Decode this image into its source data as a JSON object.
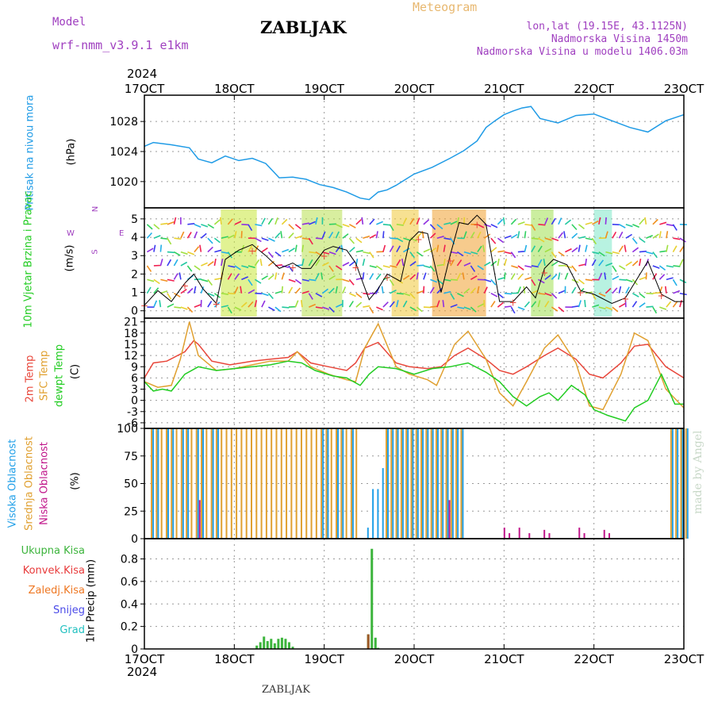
{
  "header": {
    "model_label": "Model",
    "model_name": "wrf-nmm_v3.9.1 e1km",
    "title": "ZABLJAK",
    "product": "Meteogram",
    "coords": "lon,lat (19.15E, 43.1125N)",
    "altitude": "Nadmorska Visina 1450m",
    "model_altitude": "Nadmorska Visina u modelu 1406.03m",
    "year": "2024",
    "footer_station": "ZABLJAK",
    "watermark": "made by Angel"
  },
  "colors": {
    "pressure": "#1f9be6",
    "temp2m": "#e8463a",
    "sfc_temp": "#e0a030",
    "dewpt": "#22cc22",
    "high_cloud": "#22a0e8",
    "mid_cloud": "#e0a030",
    "low_cloud": "#c0168a",
    "total_precip": "#3cb43c",
    "convective": "#e83a3a",
    "frozen": "#ee7722",
    "snow": "#4a4ae8",
    "hail": "#22c0c0",
    "model_label": "#a040c0"
  },
  "x_axis": {
    "ticks": [
      "17OCT",
      "18OCT",
      "19OCT",
      "20OCT",
      "21OCT",
      "22OCT",
      "23OCT"
    ]
  },
  "chart_data": [
    {
      "type": "line",
      "name": "pressure",
      "ylabel_title": "Pritisak na nivou mora",
      "ylabel_unit": "(hPa)",
      "ylim": [
        1016.5,
        1031.5
      ],
      "yticks": [
        1020,
        1024,
        1028
      ],
      "grid": true,
      "x": [
        0,
        0.1,
        0.3,
        0.5,
        0.6,
        0.75,
        0.9,
        1.05,
        1.2,
        1.35,
        1.5,
        1.65,
        1.8,
        1.95,
        2.1,
        2.25,
        2.4,
        2.5,
        2.6,
        2.7,
        2.8,
        3.0,
        3.2,
        3.4,
        3.55,
        3.7,
        3.8,
        3.9,
        4.0,
        4.1,
        4.2,
        4.3,
        4.4,
        4.6,
        4.8,
        5.0,
        5.2,
        5.4,
        5.6,
        5.8,
        6.0
      ],
      "values": [
        1024.7,
        1025.2,
        1024.9,
        1024.5,
        1023.0,
        1022.5,
        1023.4,
        1022.8,
        1023.1,
        1022.4,
        1020.5,
        1020.6,
        1020.3,
        1019.6,
        1019.2,
        1018.6,
        1017.8,
        1017.6,
        1018.6,
        1018.9,
        1019.5,
        1021.0,
        1021.9,
        1023.1,
        1024.1,
        1025.4,
        1027.2,
        1028.1,
        1028.9,
        1029.4,
        1029.8,
        1030.0,
        1028.4,
        1027.8,
        1028.8,
        1029.0,
        1028.1,
        1027.2,
        1026.6,
        1028.1,
        1028.9
      ]
    },
    {
      "type": "line",
      "name": "wind",
      "ylabel_title": "10m Vjetar Brzina i Pravac",
      "ylabel_unit": "(m/s)",
      "compass": [
        "N",
        "S",
        "W",
        "E"
      ],
      "ylim": [
        -0.4,
        5.6
      ],
      "yticks": [
        0,
        1,
        2,
        3,
        4,
        5
      ],
      "grid": true,
      "x": [
        0,
        0.15,
        0.3,
        0.45,
        0.55,
        0.65,
        0.8,
        0.9,
        1.05,
        1.2,
        1.35,
        1.5,
        1.65,
        1.75,
        1.85,
        2.0,
        2.1,
        2.25,
        2.35,
        2.5,
        2.6,
        2.7,
        2.85,
        2.95,
        3.05,
        3.15,
        3.3,
        3.4,
        3.5,
        3.6,
        3.7,
        3.8,
        3.95,
        4.1,
        4.25,
        4.35,
        4.45,
        4.55,
        4.7,
        4.85,
        5.0,
        5.2,
        5.35,
        5.45,
        5.6,
        5.75,
        5.9,
        6.0
      ],
      "values": [
        0.3,
        1.1,
        0.5,
        1.5,
        2.0,
        1.2,
        0.4,
        2.8,
        3.3,
        3.6,
        3.0,
        2.3,
        2.6,
        2.3,
        2.3,
        3.3,
        3.5,
        3.3,
        2.6,
        0.6,
        1.2,
        2.0,
        1.6,
        3.8,
        4.3,
        4.2,
        1.0,
        3.0,
        4.8,
        4.7,
        5.2,
        4.7,
        0.5,
        0.5,
        1.3,
        0.7,
        2.3,
        2.8,
        2.5,
        1.1,
        0.9,
        0.4,
        0.7,
        1.5,
        2.7,
        0.9,
        0.5,
        0.5
      ]
    },
    {
      "type": "line",
      "name": "temperature",
      "ylabel_titles": [
        "2m Temp",
        "SFC Temp",
        "dewpt Temp"
      ],
      "ylabel_unit": "(C)",
      "ylim": [
        -7.5,
        22
      ],
      "yticks": [
        -6,
        -3,
        0,
        3,
        6,
        9,
        12,
        15,
        18,
        21
      ],
      "grid": true,
      "series": [
        {
          "key": "temp2m",
          "x": [
            0,
            0.1,
            0.25,
            0.45,
            0.55,
            0.6,
            0.75,
            0.95,
            1.2,
            1.4,
            1.6,
            1.7,
            1.85,
            2.05,
            2.25,
            2.35,
            2.45,
            2.6,
            2.8,
            2.95,
            3.15,
            3.3,
            3.45,
            3.6,
            3.8,
            3.95,
            4.1,
            4.25,
            4.45,
            4.6,
            4.8,
            4.95,
            5.1,
            5.3,
            5.45,
            5.6,
            5.8,
            6.0
          ],
          "values": [
            6,
            10,
            10.5,
            13,
            16,
            15,
            10.5,
            9.5,
            10.5,
            11,
            11.5,
            13,
            10,
            9,
            8,
            10,
            14,
            15.5,
            10,
            9,
            8.5,
            9,
            12,
            14,
            11,
            8,
            7,
            9,
            12,
            14,
            11,
            7,
            6,
            10,
            14.5,
            15,
            9,
            6
          ]
        },
        {
          "key": "sfc_temp",
          "x": [
            0,
            0.15,
            0.3,
            0.4,
            0.5,
            0.6,
            0.8,
            1.0,
            1.2,
            1.4,
            1.6,
            1.7,
            1.85,
            2.05,
            2.25,
            2.35,
            2.45,
            2.6,
            2.8,
            2.95,
            3.15,
            3.25,
            3.45,
            3.6,
            3.8,
            3.95,
            4.1,
            4.25,
            4.45,
            4.6,
            4.8,
            4.95,
            5.1,
            5.3,
            5.45,
            5.6,
            5.8,
            6.0
          ],
          "values": [
            5,
            3.5,
            4,
            11,
            21,
            12,
            8,
            8.5,
            9.5,
            10.5,
            10.5,
            13,
            9,
            7,
            5.5,
            5,
            14,
            20.5,
            9,
            7,
            5.5,
            4,
            15,
            18.5,
            11,
            2,
            -1.5,
            5,
            14,
            17.5,
            10,
            -1.5,
            -2.5,
            7,
            18,
            16,
            3,
            -2
          ]
        },
        {
          "key": "dewpt",
          "x": [
            0,
            0.1,
            0.2,
            0.3,
            0.45,
            0.6,
            0.8,
            1.0,
            1.2,
            1.4,
            1.6,
            1.75,
            1.9,
            2.1,
            2.25,
            2.4,
            2.5,
            2.6,
            2.8,
            3.0,
            3.2,
            3.4,
            3.6,
            3.8,
            3.95,
            4.1,
            4.25,
            4.4,
            4.5,
            4.6,
            4.75,
            4.9,
            5.0,
            5.15,
            5.35,
            5.45,
            5.6,
            5.75,
            5.9,
            6.0
          ],
          "values": [
            5,
            2.5,
            3,
            2.5,
            7,
            9,
            8,
            8.5,
            9,
            9.5,
            10.5,
            10,
            8,
            6.5,
            6,
            4,
            7,
            9,
            8.5,
            7,
            8.5,
            9,
            10,
            7.5,
            5,
            1,
            -1.5,
            1,
            2,
            0,
            4,
            1.5,
            -2.5,
            -4,
            -5.5,
            -2,
            0,
            7,
            -1,
            -1
          ]
        }
      ]
    },
    {
      "type": "bar",
      "name": "cloud_cover",
      "ylabel_titles": [
        "Visoka Oblacnost",
        "Srednja Oblacnost",
        "Niska Oblacnost"
      ],
      "ylabel_unit": "(%)",
      "ylim": [
        0,
        100
      ],
      "yticks": [
        0,
        25,
        50,
        75,
        100
      ],
      "grid": true,
      "high_values": [
        100,
        100,
        0,
        100,
        100,
        0,
        100,
        100,
        0,
        100,
        100,
        0,
        100,
        100,
        0,
        0,
        0,
        0,
        0,
        0,
        0,
        0,
        0,
        0,
        0,
        0,
        0,
        0,
        0,
        0,
        0,
        0,
        0,
        0,
        100,
        100,
        0,
        100,
        100,
        0,
        100,
        0,
        0,
        10,
        45,
        45,
        64,
        100,
        100,
        100,
        100,
        100,
        100,
        100,
        100,
        100,
        100,
        100,
        100,
        100,
        100,
        100,
        100,
        0,
        0,
        0,
        0,
        0,
        0,
        0,
        0,
        0,
        0,
        0,
        0,
        0,
        0,
        0,
        0,
        0,
        0,
        0,
        0,
        0,
        0,
        0,
        0,
        0,
        0,
        0,
        0,
        0,
        0,
        0,
        0,
        0,
        0,
        0,
        0,
        0,
        0,
        0,
        0,
        0,
        100,
        100,
        100,
        100
      ],
      "mid_values": [
        100,
        100,
        100,
        100,
        100,
        100,
        100,
        100,
        100,
        100,
        100,
        100,
        100,
        100,
        100,
        100,
        100,
        100,
        100,
        100,
        100,
        100,
        100,
        100,
        100,
        100,
        100,
        100,
        100,
        100,
        100,
        100,
        100,
        100,
        100,
        100,
        100,
        100,
        100,
        100,
        100,
        100,
        0,
        0,
        0,
        0,
        0,
        100,
        100,
        100,
        100,
        100,
        100,
        100,
        100,
        100,
        100,
        100,
        100,
        100,
        100,
        100,
        100,
        0,
        0,
        0,
        0,
        0,
        0,
        0,
        0,
        0,
        0,
        0,
        0,
        0,
        0,
        0,
        0,
        0,
        0,
        0,
        0,
        0,
        0,
        0,
        0,
        0,
        0,
        0,
        0,
        0,
        0,
        0,
        0,
        0,
        0,
        0,
        0,
        0,
        0,
        0,
        0,
        0,
        100,
        100,
        100,
        100
      ],
      "low_values": [
        0,
        0,
        0,
        0,
        0,
        0,
        0,
        0,
        0,
        35,
        0,
        0,
        0,
        0,
        0,
        0,
        0,
        0,
        0,
        0,
        0,
        0,
        0,
        0,
        0,
        0,
        0,
        0,
        0,
        0,
        0,
        0,
        0,
        0,
        0,
        0,
        0,
        0,
        0,
        0,
        0,
        0,
        0,
        0,
        0,
        0,
        0,
        0,
        0,
        0,
        0,
        0,
        0,
        0,
        0,
        0,
        0,
        0,
        0,
        35,
        0,
        0,
        0,
        0,
        0,
        0,
        0,
        0,
        0,
        0,
        10,
        5,
        0,
        10,
        0,
        5,
        0,
        0,
        8,
        5,
        0,
        0,
        0,
        0,
        0,
        10,
        5,
        0,
        0,
        0,
        8,
        5,
        0,
        0,
        0,
        0,
        0,
        0,
        0,
        0,
        0,
        0,
        0,
        0,
        0,
        0,
        0,
        0
      ]
    },
    {
      "type": "bar",
      "name": "precipitation",
      "ylabel_titles": [
        "Ukupna Kisa",
        "Konvek.Kisa",
        "Zaledj.Kisa",
        "Snijeg",
        "Grad"
      ],
      "ylabel_unit": "1hr Precip (mm)",
      "ylim": [
        0,
        0.98
      ],
      "yticks": [
        0,
        0.2,
        0.4,
        0.6,
        0.8
      ],
      "ytick_labels": [
        "0",
        "0.2",
        "0.4",
        "0.6",
        "0.8"
      ],
      "grid": true,
      "total_x": [
        1.25,
        1.29,
        1.33,
        1.37,
        1.41,
        1.45,
        1.49,
        1.53,
        1.57,
        1.61,
        1.65,
        2.49,
        2.53,
        2.57,
        2.6
      ],
      "total_values": [
        0.03,
        0.06,
        0.11,
        0.07,
        0.09,
        0.05,
        0.09,
        0.1,
        0.09,
        0.06,
        0.02,
        0.13,
        0.89,
        0.1,
        0.01
      ],
      "frozen_x": [
        2.49
      ],
      "frozen_values": [
        0.13
      ]
    }
  ]
}
